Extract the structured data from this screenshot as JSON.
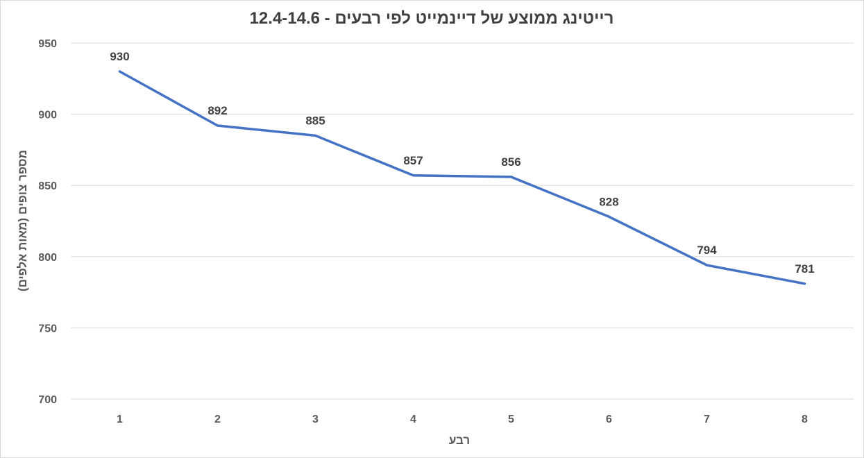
{
  "chart_data": {
    "type": "line",
    "title": "רייטינג ממוצע של דיינמייט לפי רבעים - 12.4-14.6",
    "xlabel": "רבע",
    "ylabel": "מספר צופים (מאות אלפים)",
    "categories": [
      "1",
      "2",
      "3",
      "4",
      "5",
      "6",
      "7",
      "8"
    ],
    "series": [
      {
        "values": [
          930,
          892,
          885,
          857,
          856,
          828,
          794,
          781
        ],
        "color": "#4472c4"
      }
    ],
    "ylim": [
      700,
      950
    ],
    "yticks": [
      "700",
      "750",
      "800",
      "850",
      "900",
      "950"
    ],
    "grid": true,
    "legend": "none",
    "data_labels": [
      "930",
      "892",
      "885",
      "857",
      "856",
      "828",
      "794",
      "781"
    ]
  }
}
